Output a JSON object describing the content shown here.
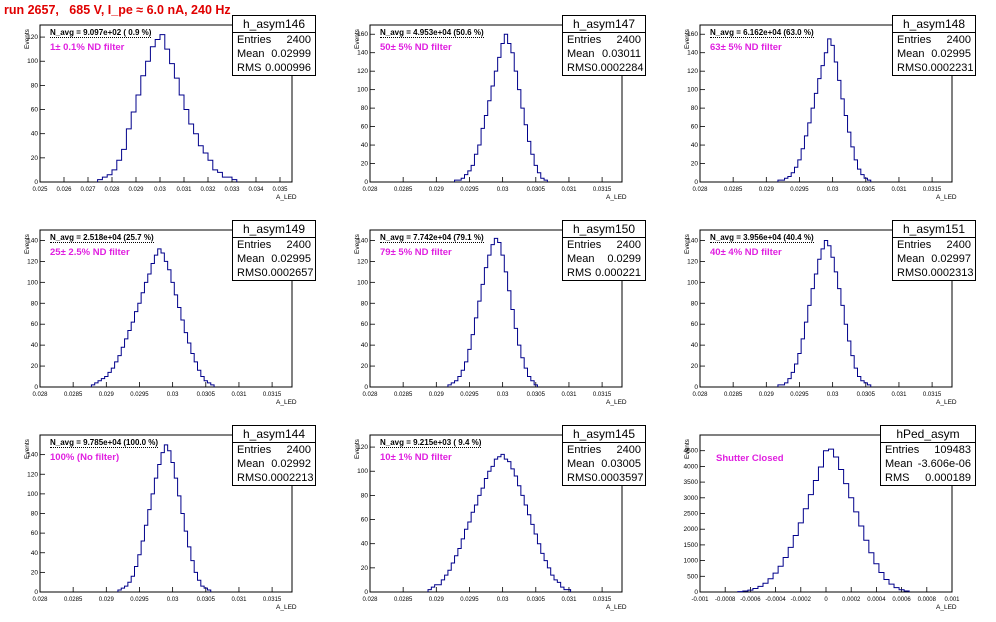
{
  "title": "run 2657,   685 V, I_pe ≈ 6.0 nA, 240 Hz",
  "chart_data": [
    {
      "type": "histogram",
      "name": "h_asym146",
      "entries": "2400",
      "mean": "0.02999",
      "rms": "0.000996",
      "n_avg_label": "N_avg = 9.097e+02 ( 0.9 %)",
      "filter_label": "1± 0.1% ND filter",
      "ylabel": "Events",
      "xlabel": "A_LED",
      "xlim": [
        0.025,
        0.0355
      ],
      "xticks": [
        "0.025",
        "0.026",
        "0.027",
        "0.028",
        "0.029",
        "0.03",
        "0.031",
        "0.032",
        "0.033",
        "0.034",
        "0.035"
      ],
      "ylim": [
        0,
        130
      ],
      "yticks": [
        "0",
        "20",
        "40",
        "60",
        "80",
        "100",
        "120"
      ],
      "x": [
        0.0275,
        0.0277,
        0.0279,
        0.0281,
        0.0283,
        0.0285,
        0.0287,
        0.0289,
        0.0291,
        0.0293,
        0.0295,
        0.0297,
        0.0299,
        0.0301,
        0.0303,
        0.0305,
        0.0307,
        0.0309,
        0.0311,
        0.0313,
        0.0315,
        0.0317,
        0.0319,
        0.0321,
        0.0323,
        0.0325,
        0.0327,
        0.0329,
        0.0331
      ],
      "values": [
        2,
        4,
        6,
        10,
        18,
        27,
        44,
        58,
        72,
        88,
        100,
        112,
        118,
        122,
        110,
        98,
        86,
        72,
        60,
        48,
        40,
        30,
        24,
        18,
        10,
        8,
        4,
        4,
        2
      ]
    },
    {
      "type": "histogram",
      "name": "h_asym147",
      "entries": "2400",
      "mean": "0.03011",
      "rms": "0.0002284",
      "n_avg_label": "N_avg = 4.953e+04 (50.6 %)",
      "filter_label": "50± 5% ND filter",
      "ylabel": "Events",
      "xlabel": "A_LED",
      "xlim": [
        0.028,
        0.0318
      ],
      "xticks": [
        "0.028",
        "0.0285",
        "0.029",
        "0.0295",
        "0.03",
        "0.0305",
        "0.031",
        "0.0315"
      ],
      "ylim": [
        0,
        170
      ],
      "yticks": [
        "0",
        "20",
        "40",
        "60",
        "80",
        "100",
        "120",
        "140",
        "160"
      ],
      "x": [
        0.0293,
        0.02935,
        0.0294,
        0.02945,
        0.0295,
        0.02955,
        0.0296,
        0.02965,
        0.0297,
        0.02975,
        0.0298,
        0.02985,
        0.0299,
        0.02995,
        0.03,
        0.03005,
        0.0301,
        0.03015,
        0.0302,
        0.03025,
        0.0303,
        0.03035,
        0.0304,
        0.03045,
        0.0305,
        0.03055,
        0.0306,
        0.03065
      ],
      "values": [
        2,
        2,
        4,
        8,
        12,
        18,
        30,
        40,
        58,
        72,
        88,
        104,
        120,
        135,
        150,
        160,
        150,
        140,
        120,
        100,
        80,
        62,
        44,
        30,
        18,
        10,
        4,
        2
      ]
    },
    {
      "type": "histogram",
      "name": "h_asym148",
      "entries": "2400",
      "mean": "0.02995",
      "rms": "0.0002231",
      "n_avg_label": "N_avg = 6.162e+04 (63.0 %)",
      "filter_label": "63± 5% ND filter",
      "ylabel": "Events",
      "xlabel": "A_LED",
      "xlim": [
        0.028,
        0.0318
      ],
      "xticks": [
        "0.028",
        "0.0285",
        "0.029",
        "0.0295",
        "0.03",
        "0.0305",
        "0.031",
        "0.0315"
      ],
      "ylim": [
        0,
        170
      ],
      "yticks": [
        "0",
        "20",
        "40",
        "60",
        "80",
        "100",
        "120",
        "140",
        "160"
      ],
      "x": [
        0.0292,
        0.02925,
        0.0293,
        0.02935,
        0.0294,
        0.02945,
        0.0295,
        0.02955,
        0.0296,
        0.02965,
        0.0297,
        0.02975,
        0.0298,
        0.02985,
        0.0299,
        0.02995,
        0.03,
        0.03005,
        0.0301,
        0.03015,
        0.0302,
        0.03025,
        0.0303,
        0.03035,
        0.0304,
        0.03045,
        0.0305,
        0.03055
      ],
      "values": [
        2,
        2,
        4,
        6,
        10,
        16,
        24,
        36,
        50,
        64,
        80,
        96,
        112,
        126,
        140,
        155,
        148,
        130,
        110,
        90,
        72,
        54,
        38,
        24,
        14,
        8,
        4,
        2
      ]
    },
    {
      "type": "histogram",
      "name": "h_asym149",
      "entries": "2400",
      "mean": "0.02995",
      "rms": "0.0002657",
      "n_avg_label": "N_avg = 2.518e+04 (25.7 %)",
      "filter_label": "25± 2.5% ND filter",
      "ylabel": "Events",
      "xlabel": "A_LED",
      "xlim": [
        0.028,
        0.0318
      ],
      "xticks": [
        "0.028",
        "0.0285",
        "0.029",
        "0.0295",
        "0.03",
        "0.0305",
        "0.031",
        "0.0315"
      ],
      "ylim": [
        0,
        150
      ],
      "yticks": [
        "0",
        "20",
        "40",
        "60",
        "80",
        "100",
        "120",
        "140"
      ],
      "x": [
        0.0288,
        0.02885,
        0.0289,
        0.02895,
        0.029,
        0.02905,
        0.0291,
        0.02915,
        0.0292,
        0.02925,
        0.0293,
        0.02935,
        0.0294,
        0.02945,
        0.0295,
        0.02955,
        0.0296,
        0.02965,
        0.0297,
        0.02975,
        0.0298,
        0.02985,
        0.0299,
        0.02995,
        0.03,
        0.03005,
        0.0301,
        0.03015,
        0.0302,
        0.03025,
        0.0303,
        0.03035,
        0.0304,
        0.03045,
        0.0305,
        0.03055,
        0.0306
      ],
      "values": [
        2,
        4,
        6,
        8,
        10,
        14,
        18,
        24,
        30,
        38,
        46,
        54,
        62,
        72,
        80,
        90,
        100,
        108,
        118,
        126,
        132,
        128,
        120,
        112,
        100,
        88,
        76,
        64,
        52,
        42,
        32,
        24,
        16,
        10,
        6,
        4,
        2
      ]
    },
    {
      "type": "histogram",
      "name": "h_asym150",
      "entries": "2400",
      "mean": "0.0299",
      "rms": "0.000221",
      "n_avg_label": "N_avg = 7.742e+04 (79.1 %)",
      "filter_label": "79± 5% ND filter",
      "ylabel": "Events",
      "xlabel": "A_LED",
      "xlim": [
        0.028,
        0.0318
      ],
      "xticks": [
        "0.028",
        "0.0285",
        "0.029",
        "0.0295",
        "0.03",
        "0.0305",
        "0.031",
        "0.0315"
      ],
      "ylim": [
        0,
        150
      ],
      "yticks": [
        "0",
        "20",
        "40",
        "60",
        "80",
        "100",
        "120",
        "140"
      ],
      "x": [
        0.0292,
        0.02925,
        0.0293,
        0.02935,
        0.0294,
        0.02945,
        0.0295,
        0.02955,
        0.0296,
        0.02965,
        0.0297,
        0.02975,
        0.0298,
        0.02985,
        0.0299,
        0.02995,
        0.03,
        0.03005,
        0.0301,
        0.03015,
        0.0302,
        0.03025,
        0.0303,
        0.03035,
        0.0304,
        0.03045,
        0.0305
      ],
      "values": [
        2,
        4,
        6,
        10,
        16,
        24,
        36,
        50,
        66,
        82,
        98,
        114,
        126,
        136,
        142,
        138,
        126,
        110,
        92,
        74,
        56,
        40,
        28,
        18,
        10,
        6,
        2
      ]
    },
    {
      "type": "histogram",
      "name": "h_asym151",
      "entries": "2400",
      "mean": "0.02997",
      "rms": "0.0002313",
      "n_avg_label": "N_avg = 3.956e+04 (40.4 %)",
      "filter_label": "40± 4% ND filter",
      "ylabel": "Events",
      "xlabel": "A_LED",
      "xlim": [
        0.028,
        0.0318
      ],
      "xticks": [
        "0.028",
        "0.0285",
        "0.029",
        "0.0295",
        "0.03",
        "0.0305",
        "0.031",
        "0.0315"
      ],
      "ylim": [
        0,
        150
      ],
      "yticks": [
        "0",
        "20",
        "40",
        "60",
        "80",
        "100",
        "120",
        "140"
      ],
      "x": [
        0.0292,
        0.02925,
        0.0293,
        0.02935,
        0.0294,
        0.02945,
        0.0295,
        0.02955,
        0.0296,
        0.02965,
        0.0297,
        0.02975,
        0.0298,
        0.02985,
        0.0299,
        0.02995,
        0.03,
        0.03005,
        0.0301,
        0.03015,
        0.0302,
        0.03025,
        0.0303,
        0.03035,
        0.0304,
        0.03045,
        0.0305,
        0.03055
      ],
      "values": [
        2,
        2,
        4,
        8,
        14,
        22,
        32,
        46,
        62,
        78,
        94,
        108,
        122,
        132,
        140,
        135,
        124,
        110,
        94,
        78,
        60,
        44,
        30,
        18,
        10,
        6,
        4,
        2
      ]
    },
    {
      "type": "histogram",
      "name": "h_asym144",
      "entries": "2400",
      "mean": "0.02992",
      "rms": "0.0002213",
      "n_avg_label": "N_avg = 9.785e+04 (100.0 %)",
      "filter_label": "100% (No filter)",
      "ylabel": "Events",
      "xlabel": "A_LED",
      "xlim": [
        0.028,
        0.0318
      ],
      "xticks": [
        "0.028",
        "0.0285",
        "0.029",
        "0.0295",
        "0.03",
        "0.0305",
        "0.031",
        "0.0315"
      ],
      "ylim": [
        0,
        160
      ],
      "yticks": [
        "0",
        "20",
        "40",
        "60",
        "80",
        "100",
        "120",
        "140"
      ],
      "x": [
        0.0292,
        0.02925,
        0.0293,
        0.02935,
        0.0294,
        0.02945,
        0.0295,
        0.02955,
        0.0296,
        0.02965,
        0.0297,
        0.02975,
        0.0298,
        0.02985,
        0.0299,
        0.02995,
        0.03,
        0.03005,
        0.0301,
        0.03015,
        0.0302,
        0.03025,
        0.0303,
        0.03035,
        0.0304,
        0.03045,
        0.0305,
        0.03055
      ],
      "values": [
        2,
        4,
        6,
        10,
        16,
        26,
        38,
        52,
        68,
        84,
        100,
        116,
        130,
        142,
        150,
        144,
        132,
        116,
        98,
        80,
        62,
        46,
        32,
        20,
        12,
        6,
        4,
        2
      ]
    },
    {
      "type": "histogram",
      "name": "h_asym145",
      "entries": "2400",
      "mean": "0.03005",
      "rms": "0.0003597",
      "n_avg_label": "N_avg = 9.215e+03 ( 9.4 %)",
      "filter_label": "10± 1% ND filter",
      "ylabel": "Events",
      "xlabel": "A_LED",
      "xlim": [
        0.028,
        0.0318
      ],
      "xticks": [
        "0.028",
        "0.0285",
        "0.029",
        "0.0295",
        "0.03",
        "0.0305",
        "0.031",
        "0.0315"
      ],
      "ylim": [
        0,
        130
      ],
      "yticks": [
        "0",
        "20",
        "40",
        "60",
        "80",
        "100",
        "120"
      ],
      "x": [
        0.0289,
        0.02895,
        0.029,
        0.02905,
        0.0291,
        0.02915,
        0.0292,
        0.02925,
        0.0293,
        0.02935,
        0.0294,
        0.02945,
        0.0295,
        0.02955,
        0.0296,
        0.02965,
        0.0297,
        0.02975,
        0.0298,
        0.02985,
        0.0299,
        0.02995,
        0.03,
        0.03005,
        0.0301,
        0.03015,
        0.0302,
        0.03025,
        0.0303,
        0.03035,
        0.0304,
        0.03045,
        0.0305,
        0.03055,
        0.0306,
        0.03065,
        0.0307,
        0.03075,
        0.0308,
        0.03085,
        0.0309,
        0.03095,
        0.031
      ],
      "values": [
        2,
        4,
        6,
        6,
        10,
        14,
        18,
        24,
        30,
        36,
        44,
        52,
        58,
        66,
        72,
        80,
        86,
        94,
        100,
        104,
        110,
        112,
        114,
        110,
        108,
        102,
        96,
        88,
        80,
        72,
        64,
        56,
        48,
        40,
        32,
        26,
        20,
        14,
        10,
        8,
        4,
        2,
        2
      ]
    },
    {
      "type": "histogram",
      "name": "hPed_asym",
      "entries": "109483",
      "mean": "-3.606e-06",
      "rms": "0.000189",
      "n_avg_label": "",
      "filter_label": "Shutter Closed",
      "ylabel": "Events",
      "xlabel": "A_LED",
      "xlim": [
        -0.001,
        0.001
      ],
      "xticks": [
        "-0.001",
        "-0.0008",
        "-0.0006",
        "-0.0004",
        "-0.0002",
        "0",
        "0.0002",
        "0.0004",
        "0.0006",
        "0.0008",
        "0.001"
      ],
      "ylim": [
        0,
        5000
      ],
      "yticks": [
        "0",
        "500",
        "1000",
        "1500",
        "2000",
        "2500",
        "3000",
        "3500",
        "4000",
        "4500"
      ],
      "x": [
        -0.00068,
        -0.00064,
        -0.0006,
        -0.00056,
        -0.00052,
        -0.00048,
        -0.00044,
        -0.0004,
        -0.00036,
        -0.00032,
        -0.00028,
        -0.00024,
        -0.0002,
        -0.00016,
        -0.00012,
        -8e-05,
        -4e-05,
        0.0,
        4e-05,
        8e-05,
        0.00012,
        0.00016,
        0.0002,
        0.00024,
        0.00028,
        0.00032,
        0.00036,
        0.0004,
        0.00044,
        0.00048,
        0.00052,
        0.00056,
        0.0006,
        0.00064
      ],
      "values": [
        10,
        30,
        60,
        110,
        180,
        280,
        420,
        600,
        820,
        1100,
        1420,
        1800,
        2200,
        2650,
        3100,
        3550,
        3980,
        4500,
        4550,
        4300,
        3900,
        3450,
        3000,
        2550,
        2100,
        1650,
        1250,
        900,
        620,
        400,
        250,
        140,
        70,
        30
      ]
    }
  ]
}
